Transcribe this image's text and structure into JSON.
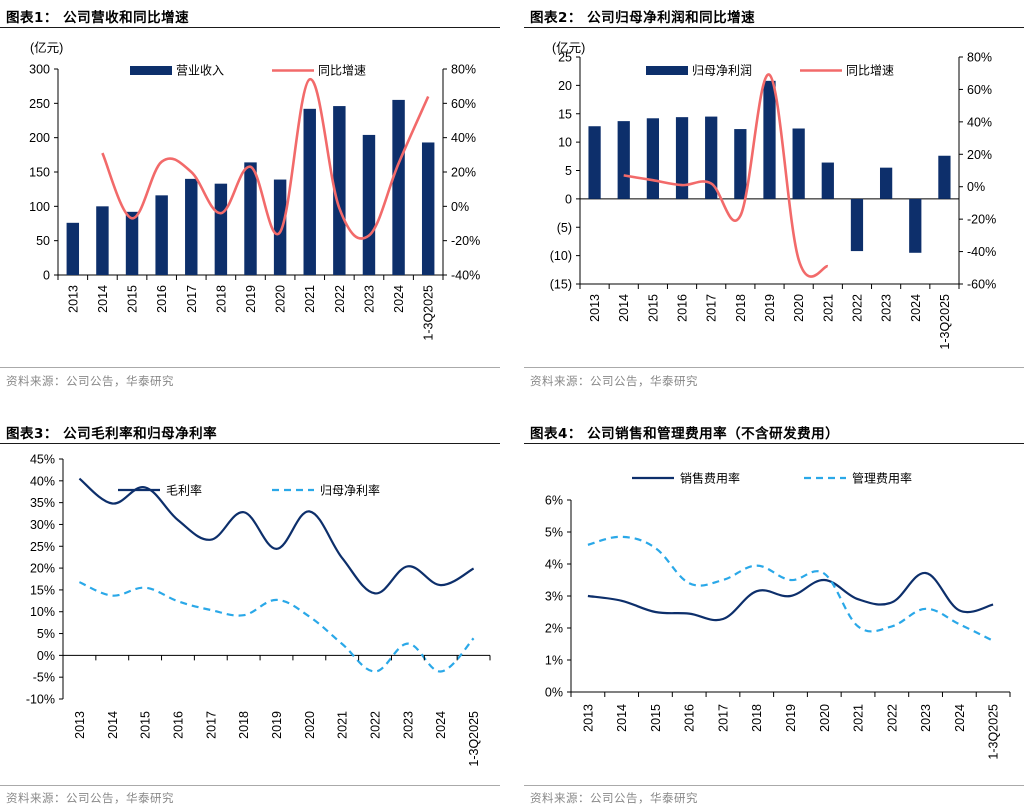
{
  "colors": {
    "navy": "#0d2f6b",
    "red": "#f26a6a",
    "lightblue": "#2aa8e8",
    "rule": "#1a1a1a",
    "source": "#888888"
  },
  "chart_data": [
    {
      "id": "c1",
      "type": "bar+line",
      "title": "图表1：  公司营收和同比增速",
      "unit_label": "(亿元)",
      "categories": [
        "2013",
        "2014",
        "2015",
        "2016",
        "2017",
        "2018",
        "2019",
        "2020",
        "2021",
        "2022",
        "2023",
        "2024",
        "1-3Q2025"
      ],
      "series": [
        {
          "name": "营业收入",
          "type": "bar",
          "axis": "left",
          "values": [
            76,
            100,
            92,
            116,
            140,
            133,
            164,
            139,
            242,
            246,
            204,
            255,
            193
          ]
        },
        {
          "name": "同比增速",
          "type": "line",
          "axis": "right",
          "values": [
            null,
            31,
            -7,
            26,
            20,
            -4,
            23,
            -15,
            74,
            -1,
            -17,
            25,
            64
          ]
        }
      ],
      "y_left": {
        "min": 0,
        "max": 300,
        "step": 50
      },
      "y_left_ticks": [
        "0",
        "50",
        "100",
        "150",
        "200",
        "250",
        "300"
      ],
      "y_right": {
        "min": -40,
        "max": 80,
        "step": 20
      },
      "y_right_ticks": [
        "-40%",
        "-20%",
        "0%",
        "20%",
        "40%",
        "60%",
        "80%"
      ],
      "source": "资料来源：公司公告，华泰研究"
    },
    {
      "id": "c2",
      "type": "bar+line",
      "title": "图表2：  公司归母净利润和同比增速",
      "unit_label": "(亿元)",
      "categories": [
        "2013",
        "2014",
        "2015",
        "2016",
        "2017",
        "2018",
        "2019",
        "2020",
        "2021",
        "2022",
        "2023",
        "2024",
        "1-3Q2025"
      ],
      "series": [
        {
          "name": "归母净利润",
          "type": "bar",
          "axis": "left",
          "values": [
            12.8,
            13.7,
            14.2,
            14.4,
            14.5,
            12.3,
            20.8,
            12.4,
            6.4,
            -9.2,
            5.5,
            -9.5,
            7.6
          ]
        },
        {
          "name": "同比增速",
          "type": "line",
          "axis": "right",
          "values": [
            null,
            7,
            4,
            1,
            2,
            -18,
            69,
            -45,
            -49,
            null,
            null,
            null,
            null
          ]
        }
      ],
      "y_left": {
        "min": -15,
        "max": 25,
        "step": 5
      },
      "y_left_ticks": [
        "(15)",
        "(10)",
        "(5)",
        "0",
        "5",
        "10",
        "15",
        "20",
        "25"
      ],
      "y_right": {
        "min": -60,
        "max": 80,
        "step": 20
      },
      "y_right_ticks": [
        "-60%",
        "-40%",
        "-20%",
        "0%",
        "20%",
        "40%",
        "60%",
        "80%"
      ],
      "source": "资料来源：公司公告，华泰研究"
    },
    {
      "id": "c3",
      "type": "line",
      "title": "图表3：  公司毛利率和归母净利率",
      "categories": [
        "2013",
        "2014",
        "2015",
        "2016",
        "2017",
        "2018",
        "2019",
        "2020",
        "2021",
        "2022",
        "2023",
        "2024",
        "1-3Q2025"
      ],
      "series": [
        {
          "name": "毛利率",
          "style": "solid",
          "values": [
            40.5,
            34.8,
            38.5,
            31,
            26.5,
            32.8,
            24.4,
            33,
            22.3,
            14.2,
            20.4,
            16.1,
            19.9
          ]
        },
        {
          "name": "归母净利率",
          "style": "dashed",
          "values": [
            16.8,
            13.7,
            15.5,
            12.4,
            10.4,
            9.2,
            12.7,
            8.9,
            2.6,
            -3.7,
            2.7,
            -3.7,
            3.9
          ]
        }
      ],
      "y": {
        "min": -10,
        "max": 45,
        "step": 5
      },
      "y_ticks": [
        "-10%",
        "-5%",
        "0%",
        "5%",
        "10%",
        "15%",
        "20%",
        "25%",
        "30%",
        "35%",
        "40%",
        "45%"
      ],
      "source": "资料来源：公司公告，华泰研究"
    },
    {
      "id": "c4",
      "type": "line",
      "title": "图表4：  公司销售和管理费用率（不含研发费用）",
      "categories": [
        "2013",
        "2014",
        "2015",
        "2016",
        "2017",
        "2018",
        "2019",
        "2020",
        "2021",
        "2022",
        "2023",
        "2024",
        "1-3Q2025"
      ],
      "series": [
        {
          "name": "销售费用率",
          "style": "solid",
          "values": [
            3.0,
            2.85,
            2.5,
            2.45,
            2.28,
            3.15,
            3.0,
            3.5,
            2.9,
            2.8,
            3.72,
            2.55,
            2.73
          ]
        },
        {
          "name": "管理费用率",
          "style": "dashed",
          "values": [
            4.6,
            4.85,
            4.5,
            3.4,
            3.5,
            3.95,
            3.5,
            3.7,
            2.05,
            2.05,
            2.6,
            2.12,
            1.6
          ]
        }
      ],
      "y": {
        "min": 0,
        "max": 6,
        "step": 1
      },
      "y_ticks": [
        "0%",
        "1%",
        "2%",
        "3%",
        "4%",
        "5%",
        "6%"
      ],
      "source": "资料来源：公司公告，华泰研究"
    }
  ]
}
